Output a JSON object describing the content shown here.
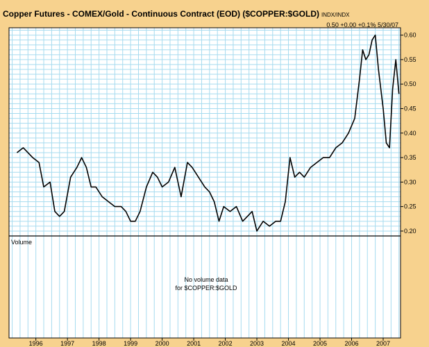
{
  "header": {
    "title": "Copper Futures - COMEX/Gold - Continuous Contract (EOD) ($COPPER:$GOLD)",
    "symbol_suffix": "INDX/INDX",
    "quote_last": "0.50",
    "quote_change": "+0.00",
    "quote_pct": "+0.1%",
    "quote_date": "5/30/07"
  },
  "volume_panel": {
    "label": "Volume",
    "message_line1": "No volume data",
    "message_line2": "for $COPPER:$GOLD"
  },
  "colors": {
    "frame": "#f7d28e",
    "grid": "#a6dbef",
    "price_line": "#000000",
    "axis": "#000000"
  },
  "chart_data": {
    "type": "line",
    "title": "Copper Futures - COMEX/Gold - Continuous Contract (EOD) ($COPPER:$GOLD)",
    "xlabel": "",
    "ylabel": "",
    "x_tick_labels": [
      "1996",
      "1997",
      "1998",
      "1999",
      "2000",
      "2001",
      "2002",
      "2003",
      "2004",
      "2005",
      "2006",
      "2007"
    ],
    "y_tick_labels": [
      "0.20",
      "0.25",
      "0.30",
      "0.35",
      "0.40",
      "0.45",
      "0.50",
      "0.55",
      "0.60"
    ],
    "y_ticks": [
      0.2,
      0.25,
      0.3,
      0.35,
      0.4,
      0.45,
      0.5,
      0.55,
      0.6
    ],
    "xlim": [
      1995.15,
      2007.55
    ],
    "ylim": [
      0.19,
      0.615
    ],
    "grid": true,
    "series": [
      {
        "x": [
          1995.4,
          1995.6,
          1995.9,
          1996.1,
          1996.25,
          1996.45,
          1996.6,
          1996.75,
          1996.9,
          1997.1,
          1997.3,
          1997.45,
          1997.6,
          1997.75,
          1997.9,
          1998.1,
          1998.3,
          1998.5,
          1998.7,
          1998.85,
          1999.0,
          1999.15,
          1999.3,
          1999.5,
          1999.7,
          1999.85,
          2000.0,
          2000.2,
          2000.4,
          2000.6,
          2000.8,
          2000.95,
          2001.15,
          2001.35,
          2001.5,
          2001.65,
          2001.8,
          2001.95,
          2002.15,
          2002.35,
          2002.55,
          2002.7,
          2002.85,
          2003.0,
          2003.2,
          2003.4,
          2003.6,
          2003.75,
          2003.9,
          2004.05,
          2004.2,
          2004.35,
          2004.5,
          2004.7,
          2004.9,
          2005.1,
          2005.3,
          2005.5,
          2005.7,
          2005.9,
          2006.1,
          2006.25,
          2006.35,
          2006.45,
          2006.55,
          2006.65,
          2006.75,
          2006.85,
          2007.0,
          2007.1,
          2007.2,
          2007.3,
          2007.4,
          2007.5
        ],
        "values": [
          0.36,
          0.37,
          0.35,
          0.34,
          0.29,
          0.3,
          0.24,
          0.23,
          0.24,
          0.31,
          0.33,
          0.35,
          0.33,
          0.29,
          0.29,
          0.27,
          0.26,
          0.25,
          0.25,
          0.24,
          0.22,
          0.22,
          0.24,
          0.29,
          0.32,
          0.31,
          0.29,
          0.3,
          0.33,
          0.27,
          0.34,
          0.33,
          0.31,
          0.29,
          0.28,
          0.26,
          0.22,
          0.25,
          0.24,
          0.25,
          0.22,
          0.23,
          0.24,
          0.2,
          0.22,
          0.21,
          0.22,
          0.22,
          0.26,
          0.35,
          0.31,
          0.32,
          0.31,
          0.33,
          0.34,
          0.35,
          0.35,
          0.37,
          0.38,
          0.4,
          0.43,
          0.51,
          0.57,
          0.55,
          0.56,
          0.59,
          0.6,
          0.53,
          0.45,
          0.38,
          0.37,
          0.49,
          0.55,
          0.48
        ]
      }
    ]
  }
}
